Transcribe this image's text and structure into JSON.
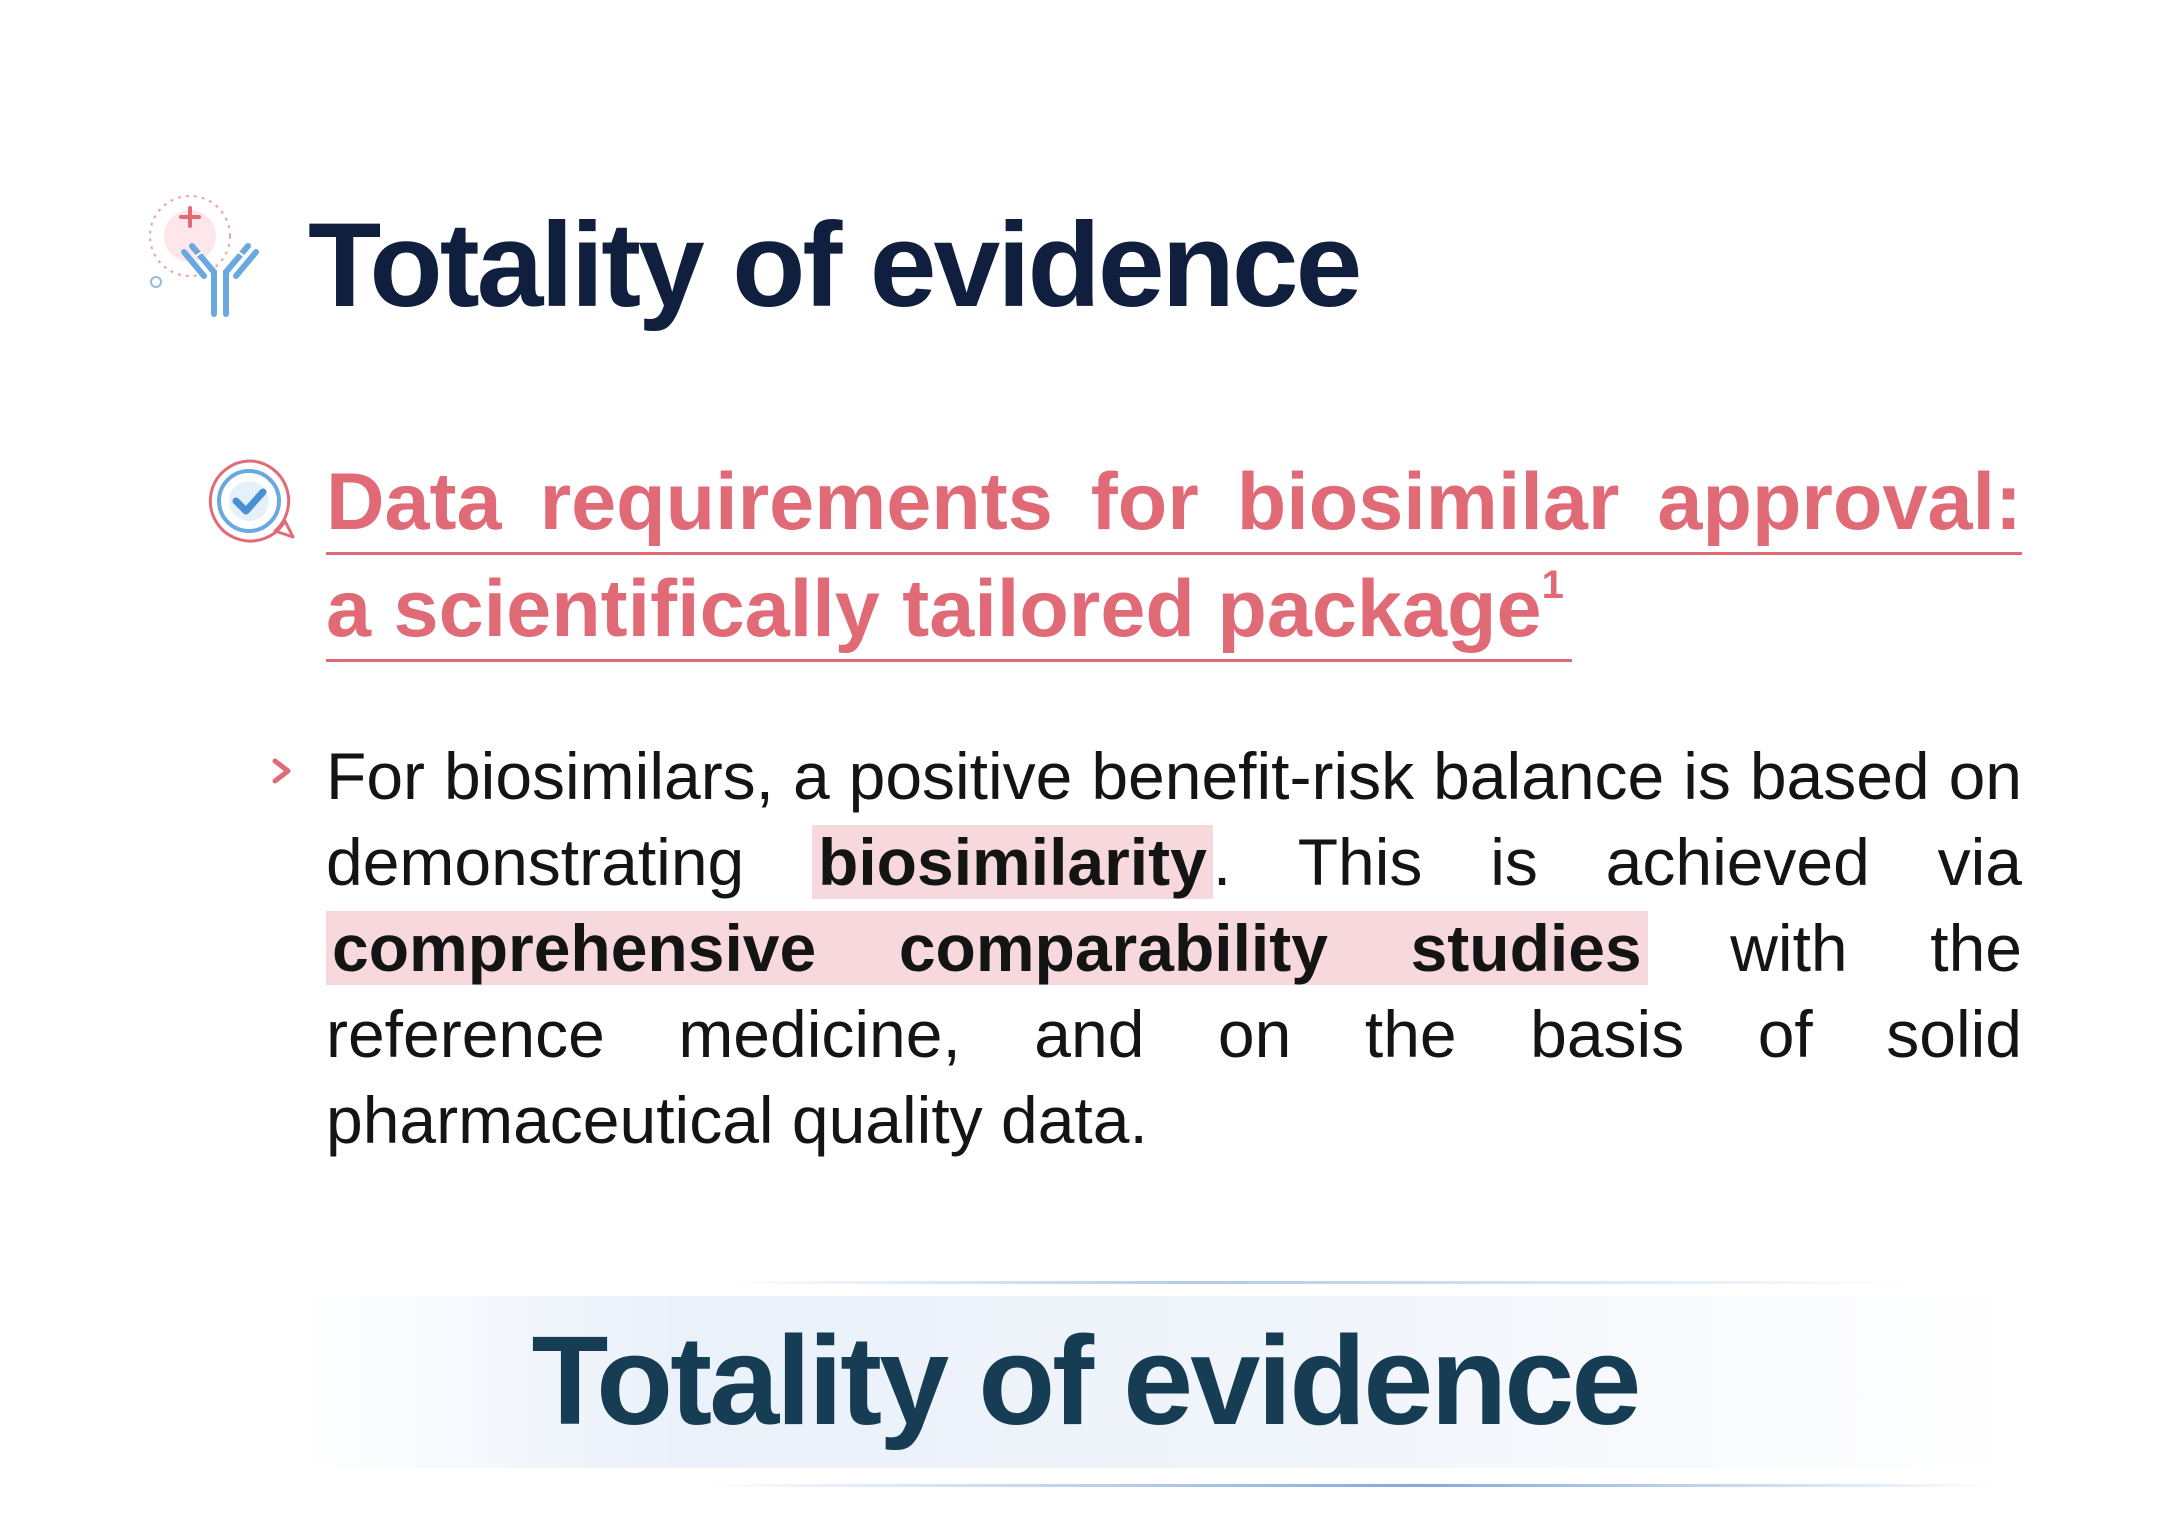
{
  "header": {
    "title": "Totality of evidence",
    "icon": "antibody-icon"
  },
  "section": {
    "icon": "check-bubble-icon",
    "heading_line1": "Data requirements for biosimilar approval:",
    "heading_line2": "a scientifically tailored package",
    "footnote_ref": "1"
  },
  "bullet": {
    "marker_icon": "chevron-right-icon",
    "part1": "For biosimilars, a positive benefit-risk balance is based on demonstrating ",
    "highlight1": "biosimilarity",
    "part2": ". This is achieved via ",
    "highlight2": "comprehensive comparability studies",
    "part3": " with the reference medicine, and on the basis of solid pharmaceutical quality data."
  },
  "banner": {
    "title": "Totality of evidence"
  },
  "colors": {
    "title": "#0f1f3d",
    "accent_pink": "#e06b77",
    "highlight_bg": "#f7d9dd",
    "banner_text": "#173d54",
    "icon_blue": "#6aa8e0"
  }
}
